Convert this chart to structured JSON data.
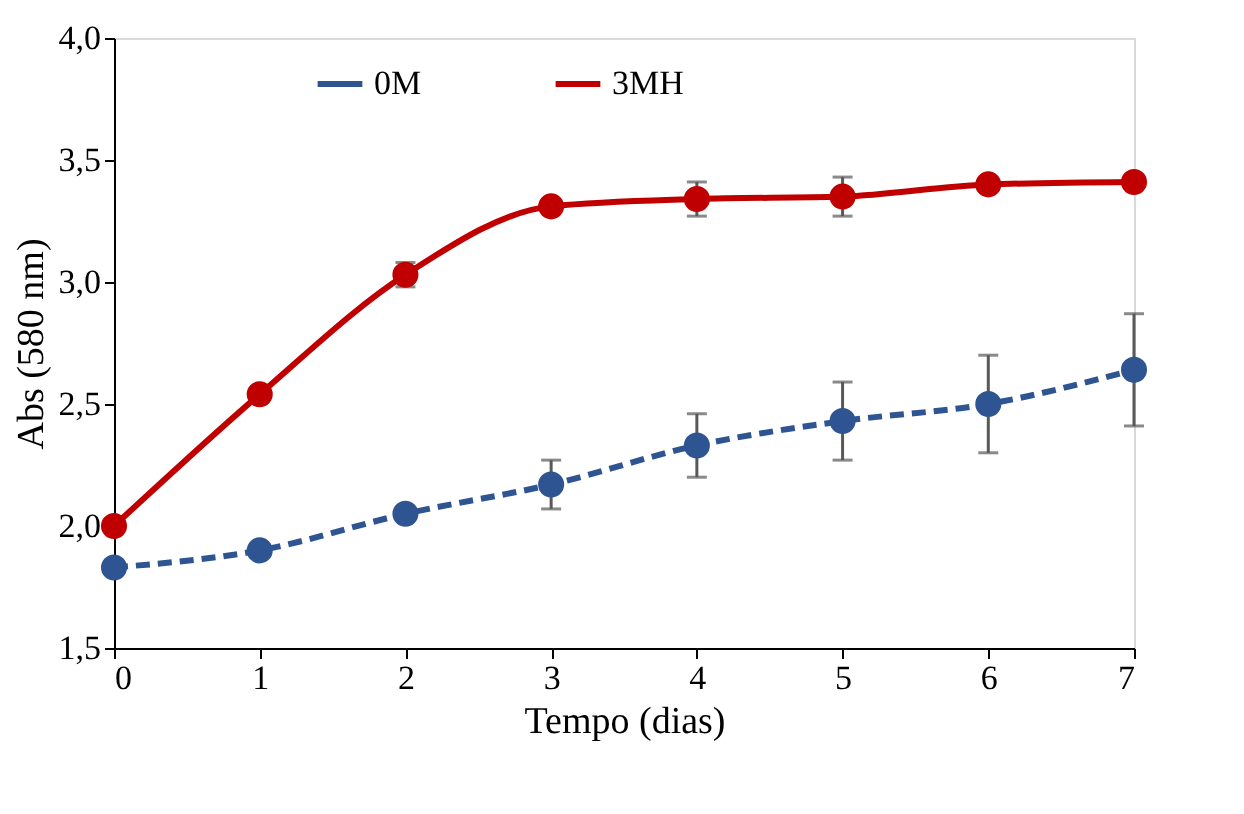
{
  "chart_data": {
    "type": "line",
    "xlabel": "Tempo (dias)",
    "ylabel": "Abs (580 nm)",
    "x": [
      0,
      1,
      2,
      3,
      4,
      5,
      6,
      7
    ],
    "series": [
      {
        "name": "0M",
        "color": "#2e5591",
        "line_style": "dashed",
        "values": [
          1.83,
          1.9,
          2.05,
          2.17,
          2.33,
          2.43,
          2.5,
          2.64
        ],
        "errors": [
          null,
          null,
          null,
          0.1,
          0.13,
          0.16,
          0.2,
          0.23
        ]
      },
      {
        "name": "3MH",
        "color": "#c00000",
        "line_style": "solid",
        "values": [
          2.0,
          2.54,
          3.03,
          3.31,
          3.34,
          3.35,
          3.4,
          3.41
        ],
        "errors": [
          null,
          null,
          0.05,
          null,
          0.07,
          0.08,
          null,
          null
        ]
      }
    ],
    "xlim": [
      0,
      7
    ],
    "xticks": [
      0,
      1,
      2,
      3,
      4,
      5,
      6,
      7
    ],
    "ylim": [
      1.5,
      4.0
    ],
    "yticks": [
      {
        "value": 1.5,
        "label": "1,5"
      },
      {
        "value": 2.0,
        "label": "2,0"
      },
      {
        "value": 2.5,
        "label": "2,5"
      },
      {
        "value": 3.0,
        "label": "3,0"
      },
      {
        "value": 3.5,
        "label": "3,5"
      },
      {
        "value": 4.0,
        "label": "4,0"
      }
    ],
    "marker": "circle",
    "grid": false,
    "legend": "top"
  }
}
